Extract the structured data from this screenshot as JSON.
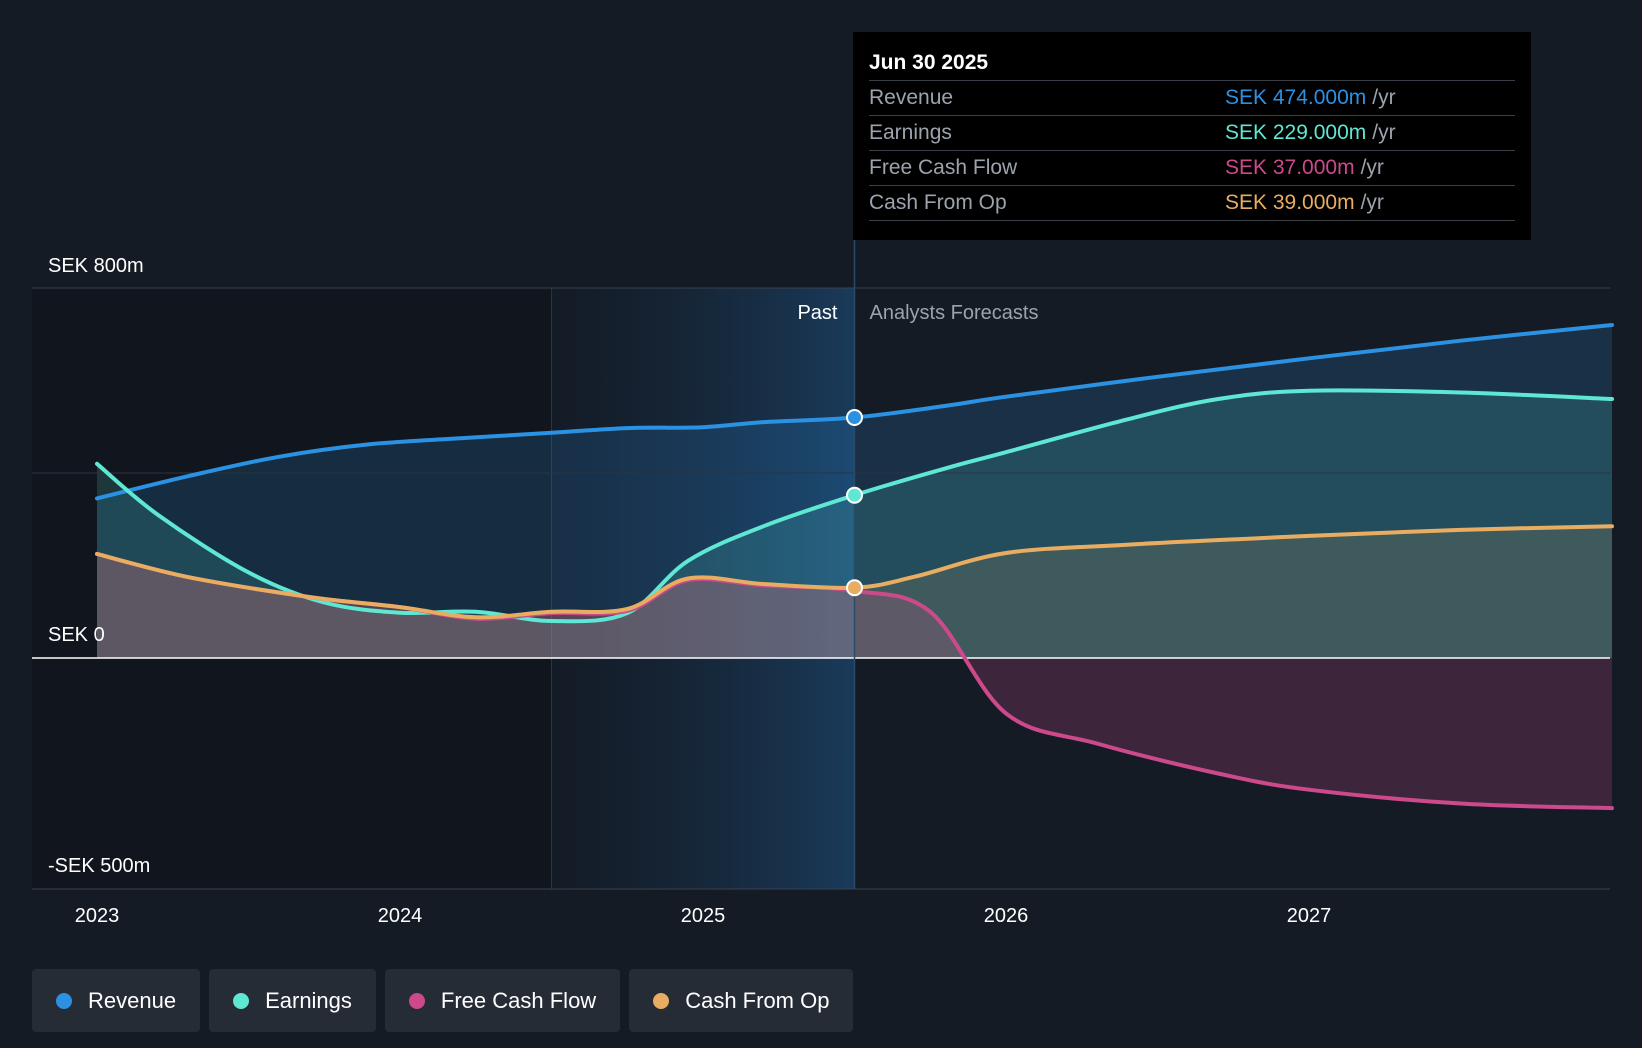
{
  "chart_data": {
    "type": "line",
    "y_axis": {
      "min": -500,
      "max": 800,
      "top_label": "SEK 800m",
      "zero_label": "SEK 0",
      "bottom_label": "-SEK 500m"
    },
    "x_axis": {
      "min": 2023,
      "max": 2028.0,
      "ticks": [
        "2023",
        "2024",
        "2025",
        "2026",
        "2027"
      ]
    },
    "divider": {
      "x": 2025.5,
      "past_label": "Past",
      "forecast_label": "Analysts Forecasts"
    },
    "highlight_start": 2024.5,
    "series": [
      {
        "name": "Revenue",
        "color": "#2b91e3",
        "points": [
          [
            2023,
            345
          ],
          [
            2023.3,
            393
          ],
          [
            2023.6,
            435
          ],
          [
            2023.9,
            462
          ],
          [
            2024.2,
            475
          ],
          [
            2024.5,
            487
          ],
          [
            2024.75,
            497
          ],
          [
            2025.0,
            499
          ],
          [
            2025.2,
            510
          ],
          [
            2025.5,
            520
          ],
          [
            2025.8,
            545
          ],
          [
            2026.0,
            565
          ],
          [
            2026.5,
            608
          ],
          [
            2027.0,
            648
          ],
          [
            2027.5,
            686
          ],
          [
            2028.0,
            720
          ]
        ]
      },
      {
        "name": "Earnings",
        "color": "#5ee7d2",
        "points": [
          [
            2023,
            420
          ],
          [
            2023.2,
            310
          ],
          [
            2023.5,
            185
          ],
          [
            2023.75,
            120
          ],
          [
            2024.0,
            98
          ],
          [
            2024.25,
            100
          ],
          [
            2024.5,
            80
          ],
          [
            2024.75,
            97
          ],
          [
            2024.95,
            210
          ],
          [
            2025.2,
            285
          ],
          [
            2025.5,
            352
          ],
          [
            2025.8,
            410
          ],
          [
            2026.0,
            445
          ],
          [
            2026.4,
            516
          ],
          [
            2026.7,
            560
          ],
          [
            2027.0,
            578
          ],
          [
            2027.5,
            574
          ],
          [
            2028.0,
            560
          ]
        ]
      },
      {
        "name": "Free Cash Flow",
        "color": "#cc4a8c",
        "points": [
          [
            2023,
            225
          ],
          [
            2023.3,
            175
          ],
          [
            2023.7,
            132
          ],
          [
            2024.0,
            110
          ],
          [
            2024.25,
            85
          ],
          [
            2024.5,
            97
          ],
          [
            2024.75,
            102
          ],
          [
            2024.95,
            168
          ],
          [
            2025.2,
            157
          ],
          [
            2025.5,
            145
          ],
          [
            2025.75,
            100
          ],
          [
            2026.0,
            -120
          ],
          [
            2026.3,
            -185
          ],
          [
            2026.7,
            -250
          ],
          [
            2027.0,
            -285
          ],
          [
            2027.5,
            -315
          ],
          [
            2028.0,
            -325
          ]
        ]
      },
      {
        "name": "Cash From Op",
        "color": "#e9ad61",
        "points": [
          [
            2023,
            225
          ],
          [
            2023.3,
            175
          ],
          [
            2023.7,
            132
          ],
          [
            2024.0,
            110
          ],
          [
            2024.25,
            88
          ],
          [
            2024.5,
            100
          ],
          [
            2024.75,
            106
          ],
          [
            2024.95,
            172
          ],
          [
            2025.2,
            160
          ],
          [
            2025.5,
            152
          ],
          [
            2025.7,
            176
          ],
          [
            2026.0,
            227
          ],
          [
            2026.4,
            245
          ],
          [
            2026.8,
            258
          ],
          [
            2027.0,
            264
          ],
          [
            2027.5,
            277
          ],
          [
            2028.0,
            285
          ]
        ]
      }
    ]
  },
  "tooltip": {
    "date": "Jun 30 2025",
    "rows": [
      {
        "name": "Revenue",
        "value": "SEK 474.000m",
        "unit": "/yr",
        "color": "#2b91e3"
      },
      {
        "name": "Earnings",
        "value": "SEK 229.000m",
        "unit": "/yr",
        "color": "#5ee7d2"
      },
      {
        "name": "Free Cash Flow",
        "value": "SEK 37.000m",
        "unit": "/yr",
        "color": "#cc4a8c"
      },
      {
        "name": "Cash From Op",
        "value": "SEK 39.000m",
        "unit": "/yr",
        "color": "#e9ad61"
      }
    ]
  },
  "legend": [
    {
      "label": "Revenue",
      "color": "#2b91e3"
    },
    {
      "label": "Earnings",
      "color": "#5ee7d2"
    },
    {
      "label": "Free Cash Flow",
      "color": "#cc4a8c"
    },
    {
      "label": "Cash From Op",
      "color": "#e9ad61"
    }
  ]
}
